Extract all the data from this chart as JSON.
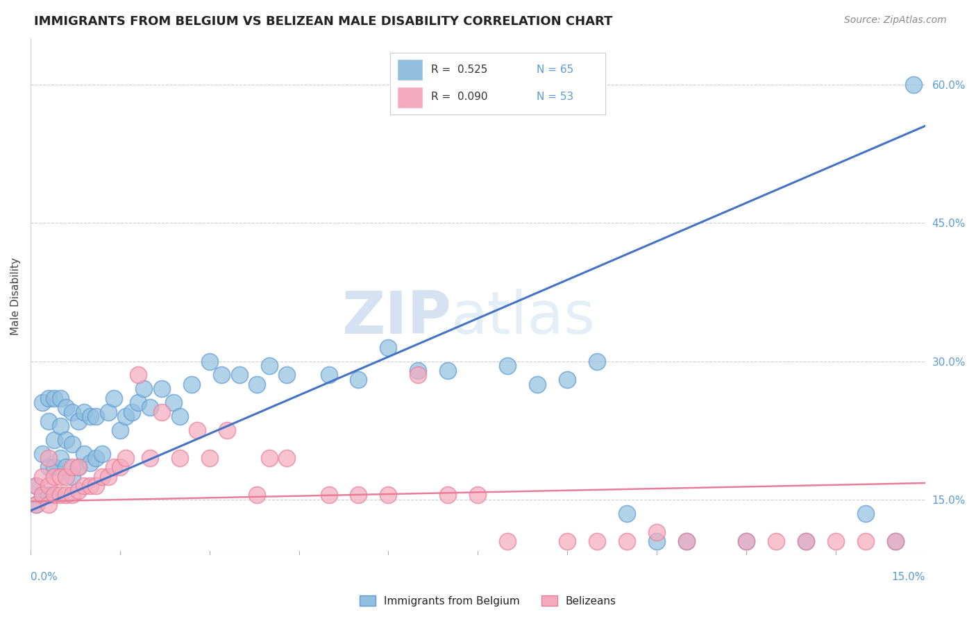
{
  "title": "IMMIGRANTS FROM BELGIUM VS BELIZEAN MALE DISABILITY CORRELATION CHART",
  "source": "Source: ZipAtlas.com",
  "ylabel": "Male Disability",
  "right_ytick_vals": [
    0.15,
    0.3,
    0.45,
    0.6
  ],
  "xmin": 0.0,
  "xmax": 0.15,
  "ymin": 0.09,
  "ymax": 0.65,
  "blue_color": "#92BFDE",
  "pink_color": "#F4AABE",
  "blue_edge_color": "#5B9BD5",
  "pink_edge_color": "#E87D9A",
  "blue_line_color": "#4472C4",
  "pink_line_color": "#E87D9A",
  "blue_scatter_x": [
    0.001,
    0.001,
    0.002,
    0.002,
    0.002,
    0.003,
    0.003,
    0.003,
    0.003,
    0.004,
    0.004,
    0.004,
    0.005,
    0.005,
    0.005,
    0.006,
    0.006,
    0.006,
    0.007,
    0.007,
    0.007,
    0.008,
    0.008,
    0.009,
    0.009,
    0.01,
    0.01,
    0.011,
    0.011,
    0.012,
    0.013,
    0.014,
    0.015,
    0.016,
    0.017,
    0.018,
    0.019,
    0.02,
    0.022,
    0.024,
    0.025,
    0.027,
    0.03,
    0.032,
    0.035,
    0.038,
    0.04,
    0.043,
    0.05,
    0.055,
    0.06,
    0.065,
    0.07,
    0.08,
    0.085,
    0.09,
    0.095,
    0.1,
    0.105,
    0.11,
    0.12,
    0.13,
    0.14,
    0.145,
    0.148
  ],
  "blue_scatter_y": [
    0.145,
    0.165,
    0.155,
    0.2,
    0.255,
    0.155,
    0.185,
    0.235,
    0.26,
    0.185,
    0.215,
    0.26,
    0.195,
    0.23,
    0.26,
    0.185,
    0.215,
    0.25,
    0.175,
    0.21,
    0.245,
    0.185,
    0.235,
    0.2,
    0.245,
    0.19,
    0.24,
    0.195,
    0.24,
    0.2,
    0.245,
    0.26,
    0.225,
    0.24,
    0.245,
    0.255,
    0.27,
    0.25,
    0.27,
    0.255,
    0.24,
    0.275,
    0.3,
    0.285,
    0.285,
    0.275,
    0.295,
    0.285,
    0.285,
    0.28,
    0.315,
    0.29,
    0.29,
    0.295,
    0.275,
    0.28,
    0.3,
    0.135,
    0.105,
    0.105,
    0.105,
    0.105,
    0.135,
    0.105,
    0.6
  ],
  "pink_scatter_x": [
    0.001,
    0.001,
    0.002,
    0.002,
    0.003,
    0.003,
    0.003,
    0.004,
    0.004,
    0.005,
    0.005,
    0.006,
    0.006,
    0.007,
    0.007,
    0.008,
    0.008,
    0.009,
    0.01,
    0.011,
    0.012,
    0.013,
    0.014,
    0.015,
    0.016,
    0.018,
    0.02,
    0.022,
    0.025,
    0.028,
    0.03,
    0.033,
    0.038,
    0.04,
    0.043,
    0.05,
    0.055,
    0.06,
    0.065,
    0.07,
    0.075,
    0.08,
    0.09,
    0.095,
    0.1,
    0.105,
    0.11,
    0.12,
    0.125,
    0.13,
    0.135,
    0.14,
    0.145
  ],
  "pink_scatter_y": [
    0.145,
    0.165,
    0.155,
    0.175,
    0.145,
    0.165,
    0.195,
    0.155,
    0.175,
    0.155,
    0.175,
    0.155,
    0.175,
    0.155,
    0.185,
    0.16,
    0.185,
    0.165,
    0.165,
    0.165,
    0.175,
    0.175,
    0.185,
    0.185,
    0.195,
    0.285,
    0.195,
    0.245,
    0.195,
    0.225,
    0.195,
    0.225,
    0.155,
    0.195,
    0.195,
    0.155,
    0.155,
    0.155,
    0.285,
    0.155,
    0.155,
    0.105,
    0.105,
    0.105,
    0.105,
    0.115,
    0.105,
    0.105,
    0.105,
    0.105,
    0.105,
    0.105,
    0.105
  ]
}
